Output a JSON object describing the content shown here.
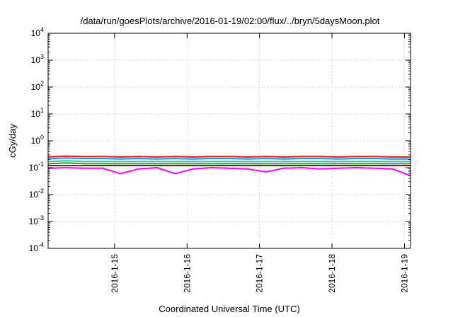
{
  "chart_data": {
    "type": "line",
    "title": "/data/run/goesPlots/archive/2016-01-19/02:00/flux/../bryn/5daysMoon.plot",
    "xlabel": "Coordinated Universal Time (UTC)",
    "ylabel": "cGy/day",
    "yscale": "log",
    "ylim": [
      0.0001,
      10000
    ],
    "xlim": [
      "2016-01-14 02:00",
      "2016-01-19 02:00"
    ],
    "grid": true,
    "legend": "none",
    "y_ticks": [
      {
        "base": "10",
        "exp": "-4"
      },
      {
        "base": "10",
        "exp": "-3"
      },
      {
        "base": "10",
        "exp": "-2"
      },
      {
        "base": "10",
        "exp": "-1"
      },
      {
        "base": "10",
        "exp": "0"
      },
      {
        "base": "10",
        "exp": "1"
      },
      {
        "base": "10",
        "exp": "2"
      },
      {
        "base": "10",
        "exp": "3"
      },
      {
        "base": "10",
        "exp": "4"
      }
    ],
    "x_ticks": [
      "2016-1-15",
      "2016-1-16",
      "2016-1-17",
      "2016-1-18",
      "2016-1-19"
    ],
    "x": [
      "2016-01-14 02:00",
      "2016-01-14 08:00",
      "2016-01-14 14:00",
      "2016-01-14 20:00",
      "2016-01-15 02:00",
      "2016-01-15 08:00",
      "2016-01-15 14:00",
      "2016-01-15 20:00",
      "2016-01-16 02:00",
      "2016-01-16 08:00",
      "2016-01-16 14:00",
      "2016-01-16 20:00",
      "2016-01-17 02:00",
      "2016-01-17 08:00",
      "2016-01-17 14:00",
      "2016-01-17 20:00",
      "2016-01-18 02:00",
      "2016-01-18 08:00",
      "2016-01-18 14:00",
      "2016-01-18 20:00",
      "2016-01-19 02:00"
    ],
    "series": [
      {
        "color": "#e01010",
        "values": [
          0.25,
          0.27,
          0.26,
          0.26,
          0.25,
          0.26,
          0.25,
          0.26,
          0.25,
          0.26,
          0.26,
          0.25,
          0.26,
          0.25,
          0.26,
          0.26,
          0.25,
          0.26,
          0.26,
          0.25,
          0.25
        ]
      },
      {
        "color": "#1e8cf0",
        "values": [
          0.21,
          0.23,
          0.22,
          0.22,
          0.21,
          0.22,
          0.21,
          0.22,
          0.21,
          0.22,
          0.22,
          0.21,
          0.22,
          0.21,
          0.22,
          0.22,
          0.21,
          0.22,
          0.22,
          0.21,
          0.21
        ]
      },
      {
        "color": "#20c8b0",
        "values": [
          0.17,
          0.18,
          0.17,
          0.17,
          0.17,
          0.17,
          0.17,
          0.17,
          0.17,
          0.17,
          0.17,
          0.17,
          0.17,
          0.17,
          0.17,
          0.17,
          0.17,
          0.17,
          0.17,
          0.17,
          0.17
        ]
      },
      {
        "color": "#2aa02a",
        "values": [
          0.14,
          0.15,
          0.14,
          0.14,
          0.14,
          0.14,
          0.14,
          0.14,
          0.14,
          0.14,
          0.14,
          0.14,
          0.14,
          0.14,
          0.14,
          0.14,
          0.14,
          0.14,
          0.14,
          0.14,
          0.14
        ]
      },
      {
        "color": "#8b1a1a",
        "values": [
          0.12,
          0.12,
          0.12,
          0.12,
          0.12,
          0.12,
          0.12,
          0.12,
          0.12,
          0.12,
          0.12,
          0.12,
          0.12,
          0.12,
          0.12,
          0.12,
          0.12,
          0.12,
          0.12,
          0.12,
          0.12
        ]
      },
      {
        "color": "#ff00ff",
        "values": [
          0.095,
          0.1,
          0.095,
          0.095,
          0.06,
          0.09,
          0.1,
          0.06,
          0.09,
          0.1,
          0.095,
          0.09,
          0.07,
          0.095,
          0.1,
          0.09,
          0.095,
          0.1,
          0.095,
          0.09,
          0.05
        ]
      }
    ]
  }
}
